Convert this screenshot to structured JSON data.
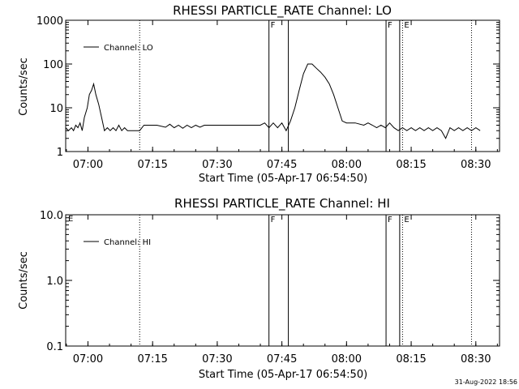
{
  "chart_data": [
    {
      "type": "line",
      "title": "RHESSI PARTICLE_RATE Channel: LO",
      "xlabel": "Start Time (05-Apr-17 06:54:50)",
      "ylabel": "Counts/sec",
      "yscale": "log",
      "ylim": [
        1,
        1000
      ],
      "xlim": [
        "06:54:50",
        "08:35:30"
      ],
      "x_ticks": [
        "07:00",
        "07:15",
        "07:30",
        "07:45",
        "08:00",
        "08:15",
        "08:30"
      ],
      "y_ticks": [
        "1",
        "10",
        "100",
        "1000"
      ],
      "legend": "top-left",
      "series": [
        {
          "name": "Channel: LO",
          "points": [
            [
              "06:54:50",
              3.5
            ],
            [
              "06:55:30",
              3.0
            ],
            [
              "06:56:10",
              3.5
            ],
            [
              "06:56:40",
              3.0
            ],
            [
              "06:57:10",
              4.0
            ],
            [
              "06:57:40",
              3.5
            ],
            [
              "06:58:10",
              4.5
            ],
            [
              "06:58:40",
              3.0
            ],
            [
              "06:59:10",
              6.0
            ],
            [
              "06:59:50",
              10.0
            ],
            [
              "07:00:20",
              20.0
            ],
            [
              "07:00:50",
              25.0
            ],
            [
              "07:01:20",
              35.0
            ],
            [
              "07:01:50",
              20.0
            ],
            [
              "07:02:30",
              12.0
            ],
            [
              "07:03:10",
              6.0
            ],
            [
              "07:03:50",
              3.0
            ],
            [
              "07:04:30",
              3.5
            ],
            [
              "07:05:10",
              3.0
            ],
            [
              "07:05:50",
              3.5
            ],
            [
              "07:06:30",
              3.0
            ],
            [
              "07:07:10",
              4.0
            ],
            [
              "07:07:50",
              3.0
            ],
            [
              "07:08:30",
              3.5
            ],
            [
              "07:09:10",
              3.0
            ],
            [
              "07:10:00",
              3.0
            ],
            [
              "07:11:00",
              3.0
            ],
            [
              "07:12:00",
              3.0
            ],
            [
              "07:13:00",
              4.0
            ],
            [
              "07:14:00",
              4.0
            ],
            [
              "07:16:00",
              4.0
            ],
            [
              "07:18:00",
              3.6
            ],
            [
              "07:19:00",
              4.2
            ],
            [
              "07:20:00",
              3.5
            ],
            [
              "07:21:00",
              4.0
            ],
            [
              "07:22:00",
              3.4
            ],
            [
              "07:23:00",
              4.0
            ],
            [
              "07:24:00",
              3.5
            ],
            [
              "07:25:00",
              4.0
            ],
            [
              "07:26:00",
              3.6
            ],
            [
              "07:27:00",
              4.0
            ],
            [
              "07:28:00",
              4.0
            ],
            [
              "07:30:00",
              4.0
            ],
            [
              "07:33:00",
              4.0
            ],
            [
              "07:36:00",
              4.0
            ],
            [
              "07:38:00",
              4.0
            ],
            [
              "07:40:00",
              4.0
            ],
            [
              "07:41:00",
              4.5
            ],
            [
              "07:42:00",
              3.5
            ],
            [
              "07:43:00",
              4.5
            ],
            [
              "07:44:00",
              3.5
            ],
            [
              "07:45:00",
              4.5
            ],
            [
              "07:46:00",
              3.0
            ],
            [
              "07:47:00",
              5.0
            ],
            [
              "07:48:00",
              10.0
            ],
            [
              "07:49:00",
              25.0
            ],
            [
              "07:50:00",
              60.0
            ],
            [
              "07:51:00",
              100.0
            ],
            [
              "07:52:00",
              100.0
            ],
            [
              "07:53:00",
              80.0
            ],
            [
              "07:54:00",
              65.0
            ],
            [
              "07:55:00",
              50.0
            ],
            [
              "07:56:00",
              35.0
            ],
            [
              "07:57:00",
              20.0
            ],
            [
              "07:58:00",
              10.0
            ],
            [
              "07:59:00",
              5.0
            ],
            [
              "08:00:00",
              4.5
            ],
            [
              "08:02:00",
              4.5
            ],
            [
              "08:04:00",
              4.0
            ],
            [
              "08:05:00",
              4.5
            ],
            [
              "08:06:00",
              4.0
            ],
            [
              "08:07:00",
              3.5
            ],
            [
              "08:08:00",
              4.0
            ],
            [
              "08:09:00",
              3.5
            ],
            [
              "08:10:00",
              4.5
            ],
            [
              "08:11:00",
              3.5
            ],
            [
              "08:12:00",
              3.0
            ],
            [
              "08:13:00",
              3.5
            ],
            [
              "08:14:00",
              3.0
            ],
            [
              "08:15:00",
              3.5
            ],
            [
              "08:16:00",
              3.0
            ],
            [
              "08:17:00",
              3.5
            ],
            [
              "08:18:00",
              3.0
            ],
            [
              "08:19:00",
              3.5
            ],
            [
              "08:20:00",
              3.0
            ],
            [
              "08:21:00",
              3.5
            ],
            [
              "08:22:00",
              3.0
            ],
            [
              "08:23:00",
              2.0
            ],
            [
              "08:24:00",
              3.5
            ],
            [
              "08:25:00",
              3.0
            ],
            [
              "08:26:00",
              3.5
            ],
            [
              "08:27:00",
              3.0
            ],
            [
              "08:28:00",
              3.5
            ],
            [
              "08:29:00",
              3.0
            ],
            [
              "08:30:00",
              3.5
            ],
            [
              "08:31:00",
              3.0
            ]
          ]
        }
      ]
    },
    {
      "type": "line",
      "title": "RHESSI PARTICLE_RATE Channel: HI",
      "xlabel": "Start Time (05-Apr-17 06:54:50)",
      "ylabel": "Counts/sec",
      "yscale": "log",
      "ylim": [
        0.1,
        10.0
      ],
      "xlim": [
        "06:54:50",
        "08:35:30"
      ],
      "x_ticks": [
        "07:00",
        "07:15",
        "07:30",
        "07:45",
        "08:00",
        "08:15",
        "08:30"
      ],
      "y_ticks": [
        "0.1",
        "1.0",
        "10.0"
      ],
      "legend": "top-left",
      "series": [
        {
          "name": "Channel: HI",
          "points": []
        }
      ]
    }
  ],
  "markers": {
    "solid_lines": [
      "07:42:00",
      "07:46:30",
      "08:09:10",
      "08:12:20"
    ],
    "dotted_lines": [
      "07:12:00",
      "08:13:00",
      "08:29:00"
    ],
    "letters": [
      {
        "text": "F",
        "time": "07:42:00"
      },
      {
        "text": "F",
        "time": "08:09:10"
      },
      {
        "text": "E",
        "time": "08:13:00"
      }
    ],
    "top_panel_left_letter": "",
    "bottom_panel_left_letter": "E"
  },
  "footer": {
    "timestamp": "31-Aug-2022 18:56"
  }
}
